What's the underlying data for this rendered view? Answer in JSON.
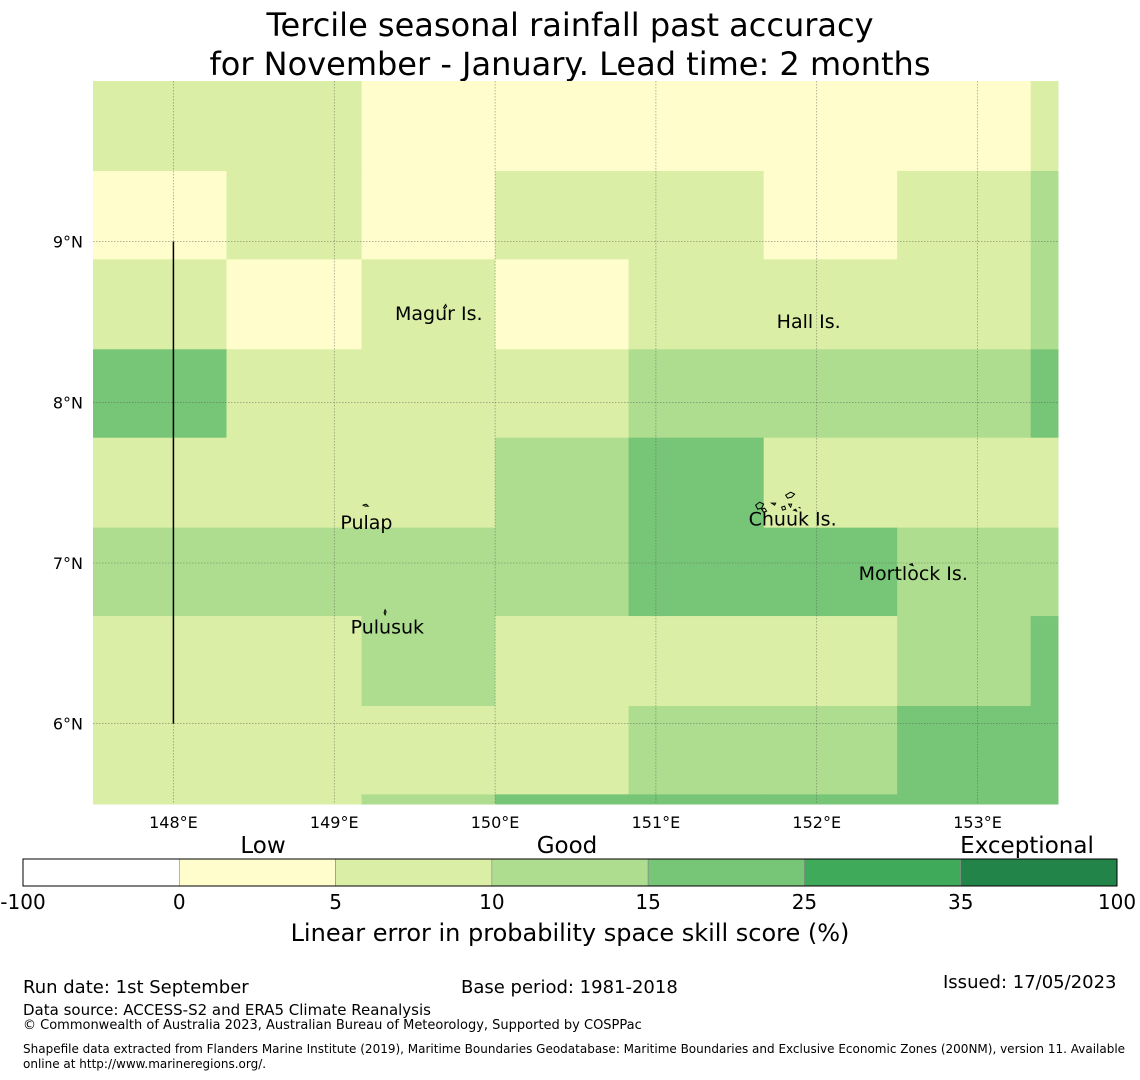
{
  "title_line1": "Tercile seasonal rainfall past accuracy",
  "title_line2": "for November - January. Lead time: 2 months",
  "chart_data": {
    "type": "heatmap",
    "x_ticks": [
      "148°E",
      "149°E",
      "150°E",
      "151°E",
      "152°E",
      "153°E"
    ],
    "x_tick_values": [
      148,
      149,
      150,
      151,
      152,
      153
    ],
    "y_ticks": [
      "9°N",
      "8°N",
      "7°N",
      "6°N"
    ],
    "y_tick_values": [
      9,
      8,
      7,
      6
    ],
    "xlim": [
      147.5,
      153.5
    ],
    "ylim": [
      5.5,
      10.0
    ],
    "grid": true,
    "cell_lon_edges": [
      147.5,
      148.33,
      149.17,
      150.0,
      150.83,
      151.67,
      152.5,
      153.33,
      153.5
    ],
    "cell_lat_edges": [
      10.0,
      9.44,
      8.89,
      8.33,
      7.78,
      7.22,
      6.67,
      6.11,
      5.56,
      5.5
    ],
    "category_colors": [
      "#ffffff",
      "#fefdcb",
      "#daeea5",
      "#aedd8f",
      "#77c577",
      "#40aa5b",
      "#23844a"
    ],
    "grid_categories": [
      [
        2,
        2,
        1,
        1,
        1,
        1,
        1,
        2
      ],
      [
        1,
        2,
        1,
        2,
        2,
        1,
        2,
        3
      ],
      [
        2,
        1,
        2,
        1,
        2,
        2,
        2,
        3
      ],
      [
        4,
        2,
        2,
        2,
        3,
        3,
        3,
        4
      ],
      [
        2,
        2,
        2,
        3,
        4,
        2,
        2,
        2
      ],
      [
        3,
        3,
        3,
        3,
        4,
        4,
        3,
        3
      ],
      [
        2,
        2,
        3,
        2,
        2,
        2,
        3,
        4
      ],
      [
        2,
        2,
        2,
        2,
        3,
        3,
        4,
        4
      ],
      [
        2,
        2,
        3,
        4,
        4,
        4,
        4,
        4
      ]
    ],
    "meridian_line": {
      "lon": 148,
      "lat_range": [
        6.0,
        9.0
      ]
    },
    "islands": [
      {
        "name": "Magur Is.",
        "lon": 149.65,
        "lat": 8.55
      },
      {
        "name": "Hall Is.",
        "lon": 151.95,
        "lat": 8.5
      },
      {
        "name": "Pulap",
        "lon": 149.2,
        "lat": 7.25
      },
      {
        "name": "Chuuk Is.",
        "lon": 151.85,
        "lat": 7.27
      },
      {
        "name": "Mortlock Is.",
        "lon": 152.6,
        "lat": 6.93
      },
      {
        "name": "Pulusuk",
        "lon": 149.33,
        "lat": 6.6
      }
    ],
    "legend": {
      "category_labels": [
        "Low",
        "Good",
        "Exceptional"
      ],
      "boundaries": [
        "-100",
        "0",
        "5",
        "10",
        "15",
        "25",
        "35",
        "100"
      ],
      "colors": [
        "#ffffff",
        "#fefdcb",
        "#daeea5",
        "#aedd8f",
        "#77c577",
        "#40aa5b",
        "#23844a"
      ],
      "label": "Linear error in probability space skill score (%)"
    }
  },
  "footer": {
    "run_date": "Run date: 1st September",
    "base_period": "Base period: 1981-2018",
    "issued": "Issued: 17/05/2023",
    "data_source": "Data source: ACCESS-S2 and ERA5 Climate Reanalysis",
    "copyright": "© Commonwealth of Australia 2023, Australian Bureau of Meteorology, Supported by COSPPac",
    "shapefile": "Shapefile data extracted from Flanders Marine Institute (2019), Maritime Boundaries Geodatabase: Maritime Boundaries and Exclusive Economic Zones (200NM), version 11. Available online at http://www.marineregions.org/."
  }
}
